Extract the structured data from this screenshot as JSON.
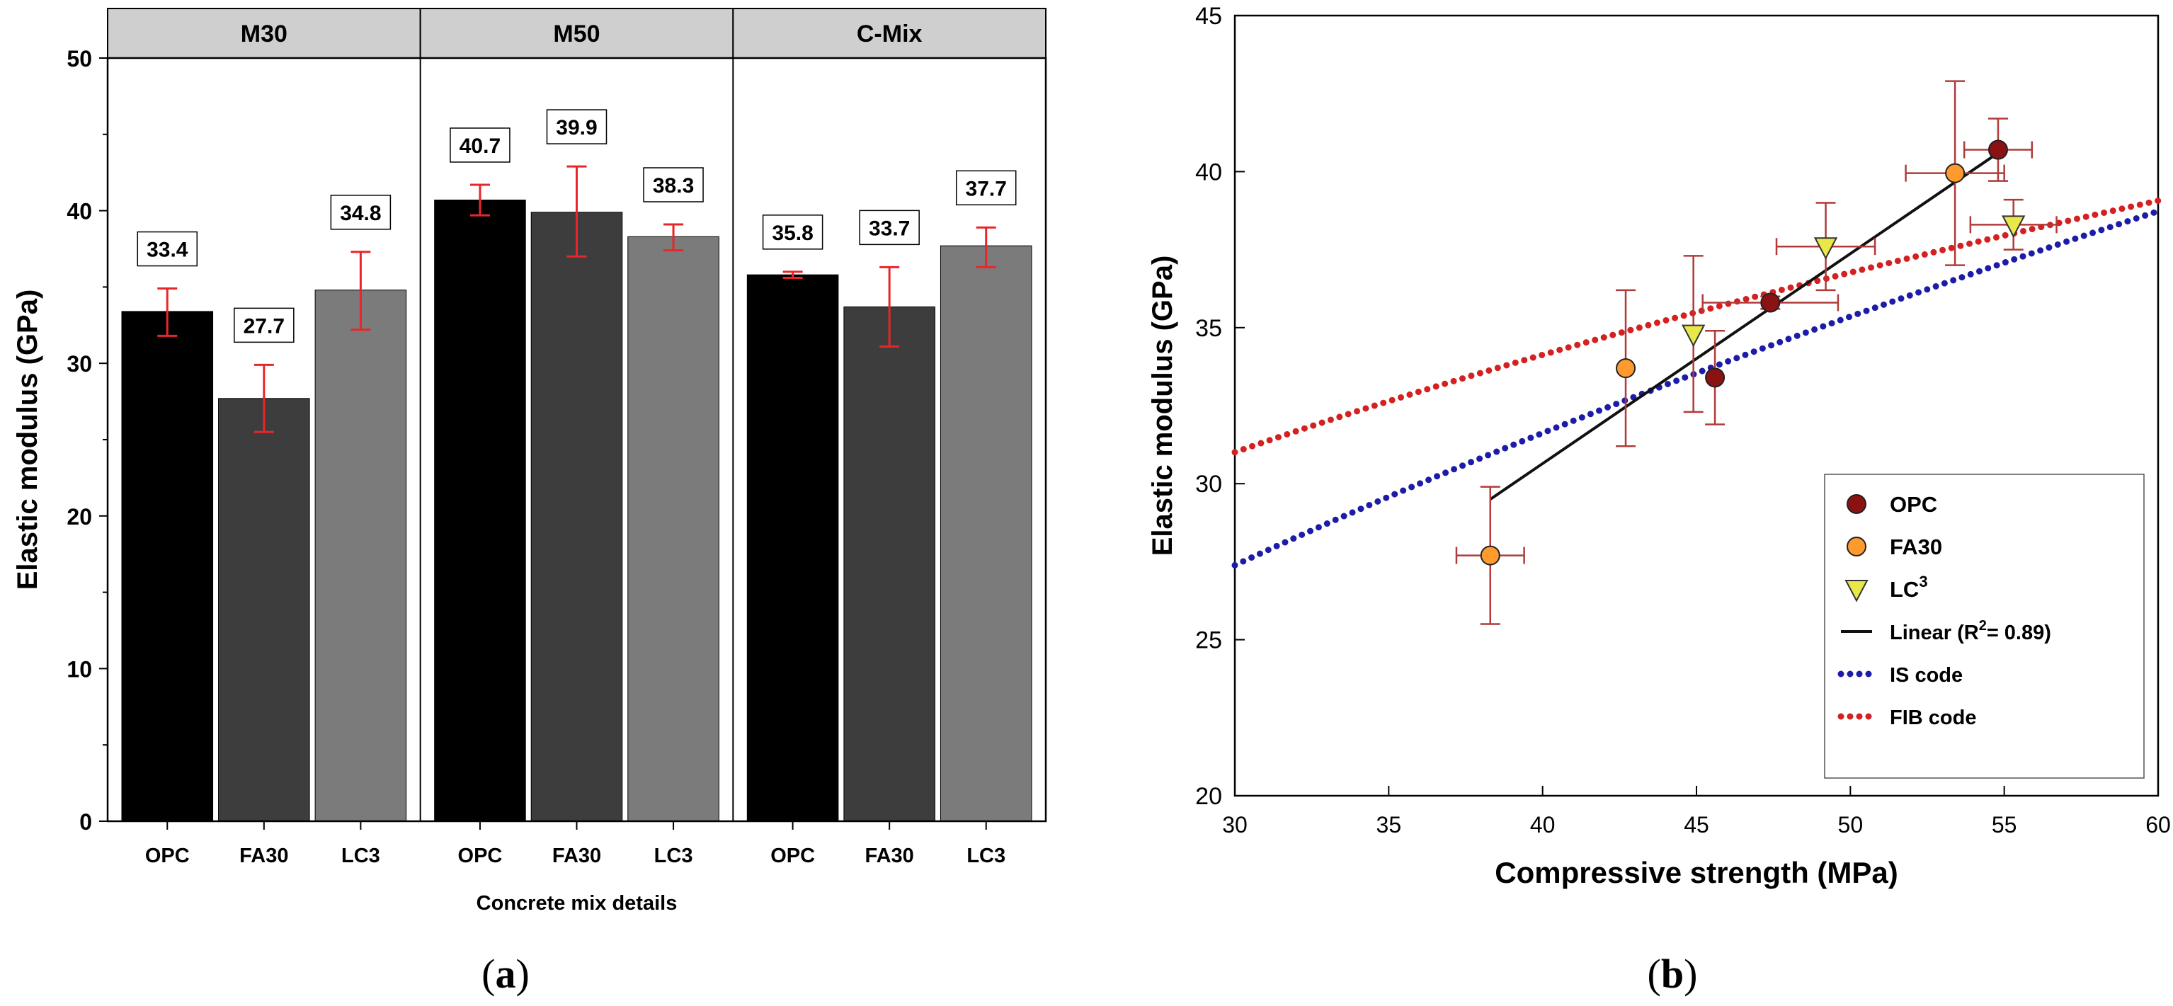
{
  "chart_data": [
    {
      "type": "bar",
      "panel_label_prefix": "(",
      "panel_label_letter": "a",
      "panel_label_suffix": ")",
      "ylabel": "Elastic modulus (GPa)",
      "xlabel": "Concrete mix details",
      "ylim": [
        0,
        50
      ],
      "yticks": [
        "0",
        "10",
        "20",
        "30",
        "40",
        "50"
      ],
      "yticks_values": [
        0,
        10,
        20,
        30,
        40,
        50
      ],
      "groups": [
        {
          "name": "M30",
          "bars": [
            {
              "category": "OPC",
              "value": 33.4,
              "label": "33.4",
              "err_low": 31.8,
              "err_high": 34.9,
              "color": "#000000"
            },
            {
              "category": "FA30",
              "value": 27.7,
              "label": "27.7",
              "err_low": 25.5,
              "err_high": 29.9,
              "color": "#3d3d3d"
            },
            {
              "category": "LC3",
              "value": 34.8,
              "label": "34.8",
              "err_low": 32.2,
              "err_high": 37.3,
              "color": "#7b7b7b"
            }
          ]
        },
        {
          "name": "M50",
          "bars": [
            {
              "category": "OPC",
              "value": 40.7,
              "label": "40.7",
              "err_low": 39.7,
              "err_high": 41.7,
              "color": "#000000"
            },
            {
              "category": "FA30",
              "value": 39.9,
              "label": "39.9",
              "err_low": 37.0,
              "err_high": 42.9,
              "color": "#3d3d3d"
            },
            {
              "category": "LC3",
              "value": 38.3,
              "label": "38.3",
              "err_low": 37.4,
              "err_high": 39.1,
              "color": "#7b7b7b"
            }
          ]
        },
        {
          "name": "C-Mix",
          "bars": [
            {
              "category": "OPC",
              "value": 35.8,
              "label": "35.8",
              "err_low": 35.6,
              "err_high": 36.0,
              "color": "#000000"
            },
            {
              "category": "FA30",
              "value": 33.7,
              "label": "33.7",
              "err_low": 31.1,
              "err_high": 36.3,
              "color": "#3d3d3d"
            },
            {
              "category": "LC3",
              "value": 37.7,
              "label": "37.7",
              "err_low": 36.3,
              "err_high": 38.9,
              "color": "#7b7b7b"
            }
          ]
        }
      ],
      "error_bar_color": "#e8262a"
    },
    {
      "type": "scatter",
      "panel_label_prefix": "(",
      "panel_label_letter": "b",
      "panel_label_suffix": ")",
      "xlabel": "Compressive strength (MPa)",
      "ylabel": "Elastic modulus (GPa)",
      "xlim": [
        30,
        60
      ],
      "ylim": [
        20,
        45
      ],
      "xticks": [
        "30",
        "35",
        "40",
        "45",
        "50",
        "55",
        "60"
      ],
      "xticks_values": [
        30,
        35,
        40,
        45,
        50,
        55,
        60
      ],
      "yticks": [
        "20",
        "25",
        "30",
        "35",
        "40",
        "45"
      ],
      "yticks_values": [
        20,
        25,
        30,
        35,
        40,
        45
      ],
      "series": [
        {
          "name": "OPC",
          "marker": "circle",
          "color": "#8b1212",
          "points": [
            {
              "x": 45.6,
              "y": 33.4,
              "xerr": 0.0,
              "yerr": 1.5
            },
            {
              "x": 47.4,
              "y": 35.8,
              "xerr": 2.2,
              "yerr": 0.2
            },
            {
              "x": 54.8,
              "y": 40.7,
              "xerr": 1.1,
              "yerr": 1.0
            }
          ]
        },
        {
          "name": "FA30",
          "marker": "circle",
          "color": "#ff9a2e",
          "points": [
            {
              "x": 38.3,
              "y": 27.7,
              "xerr": 1.1,
              "yerr": 2.2
            },
            {
              "x": 42.7,
              "y": 33.7,
              "xerr": 0.0,
              "yerr": 2.5
            },
            {
              "x": 53.4,
              "y": 39.95,
              "xerr": 1.6,
              "yerr": 2.95
            }
          ]
        },
        {
          "name": "LC",
          "name_sup": "3",
          "marker": "triangle-down",
          "color": "#e8e84a",
          "points": [
            {
              "x": 44.9,
              "y": 34.8,
              "xerr": 0.0,
              "yerr": 2.5
            },
            {
              "x": 49.2,
              "y": 37.6,
              "xerr": 1.6,
              "yerr": 1.4
            },
            {
              "x": 55.3,
              "y": 38.3,
              "xerr": 1.4,
              "yerr": 0.8
            }
          ]
        }
      ],
      "error_bar_color": "#b03a3a",
      "lines": [
        {
          "name": "Linear (R",
          "name_sup": "2",
          "name_tail": "= 0.89)",
          "style": "solid",
          "color": "#111111",
          "x": [
            38.3,
            54.8
          ],
          "y": [
            29.5,
            40.6
          ]
        },
        {
          "name": "IS code",
          "style": "dotted",
          "color": "#1c1ca8",
          "formula": "5*sqrt(x)"
        },
        {
          "name": "FIB code",
          "style": "dotted",
          "color": "#d42020",
          "formula": "21.5*(x/10)^(1/3)"
        }
      ],
      "legend_position": "bottom-right"
    }
  ]
}
